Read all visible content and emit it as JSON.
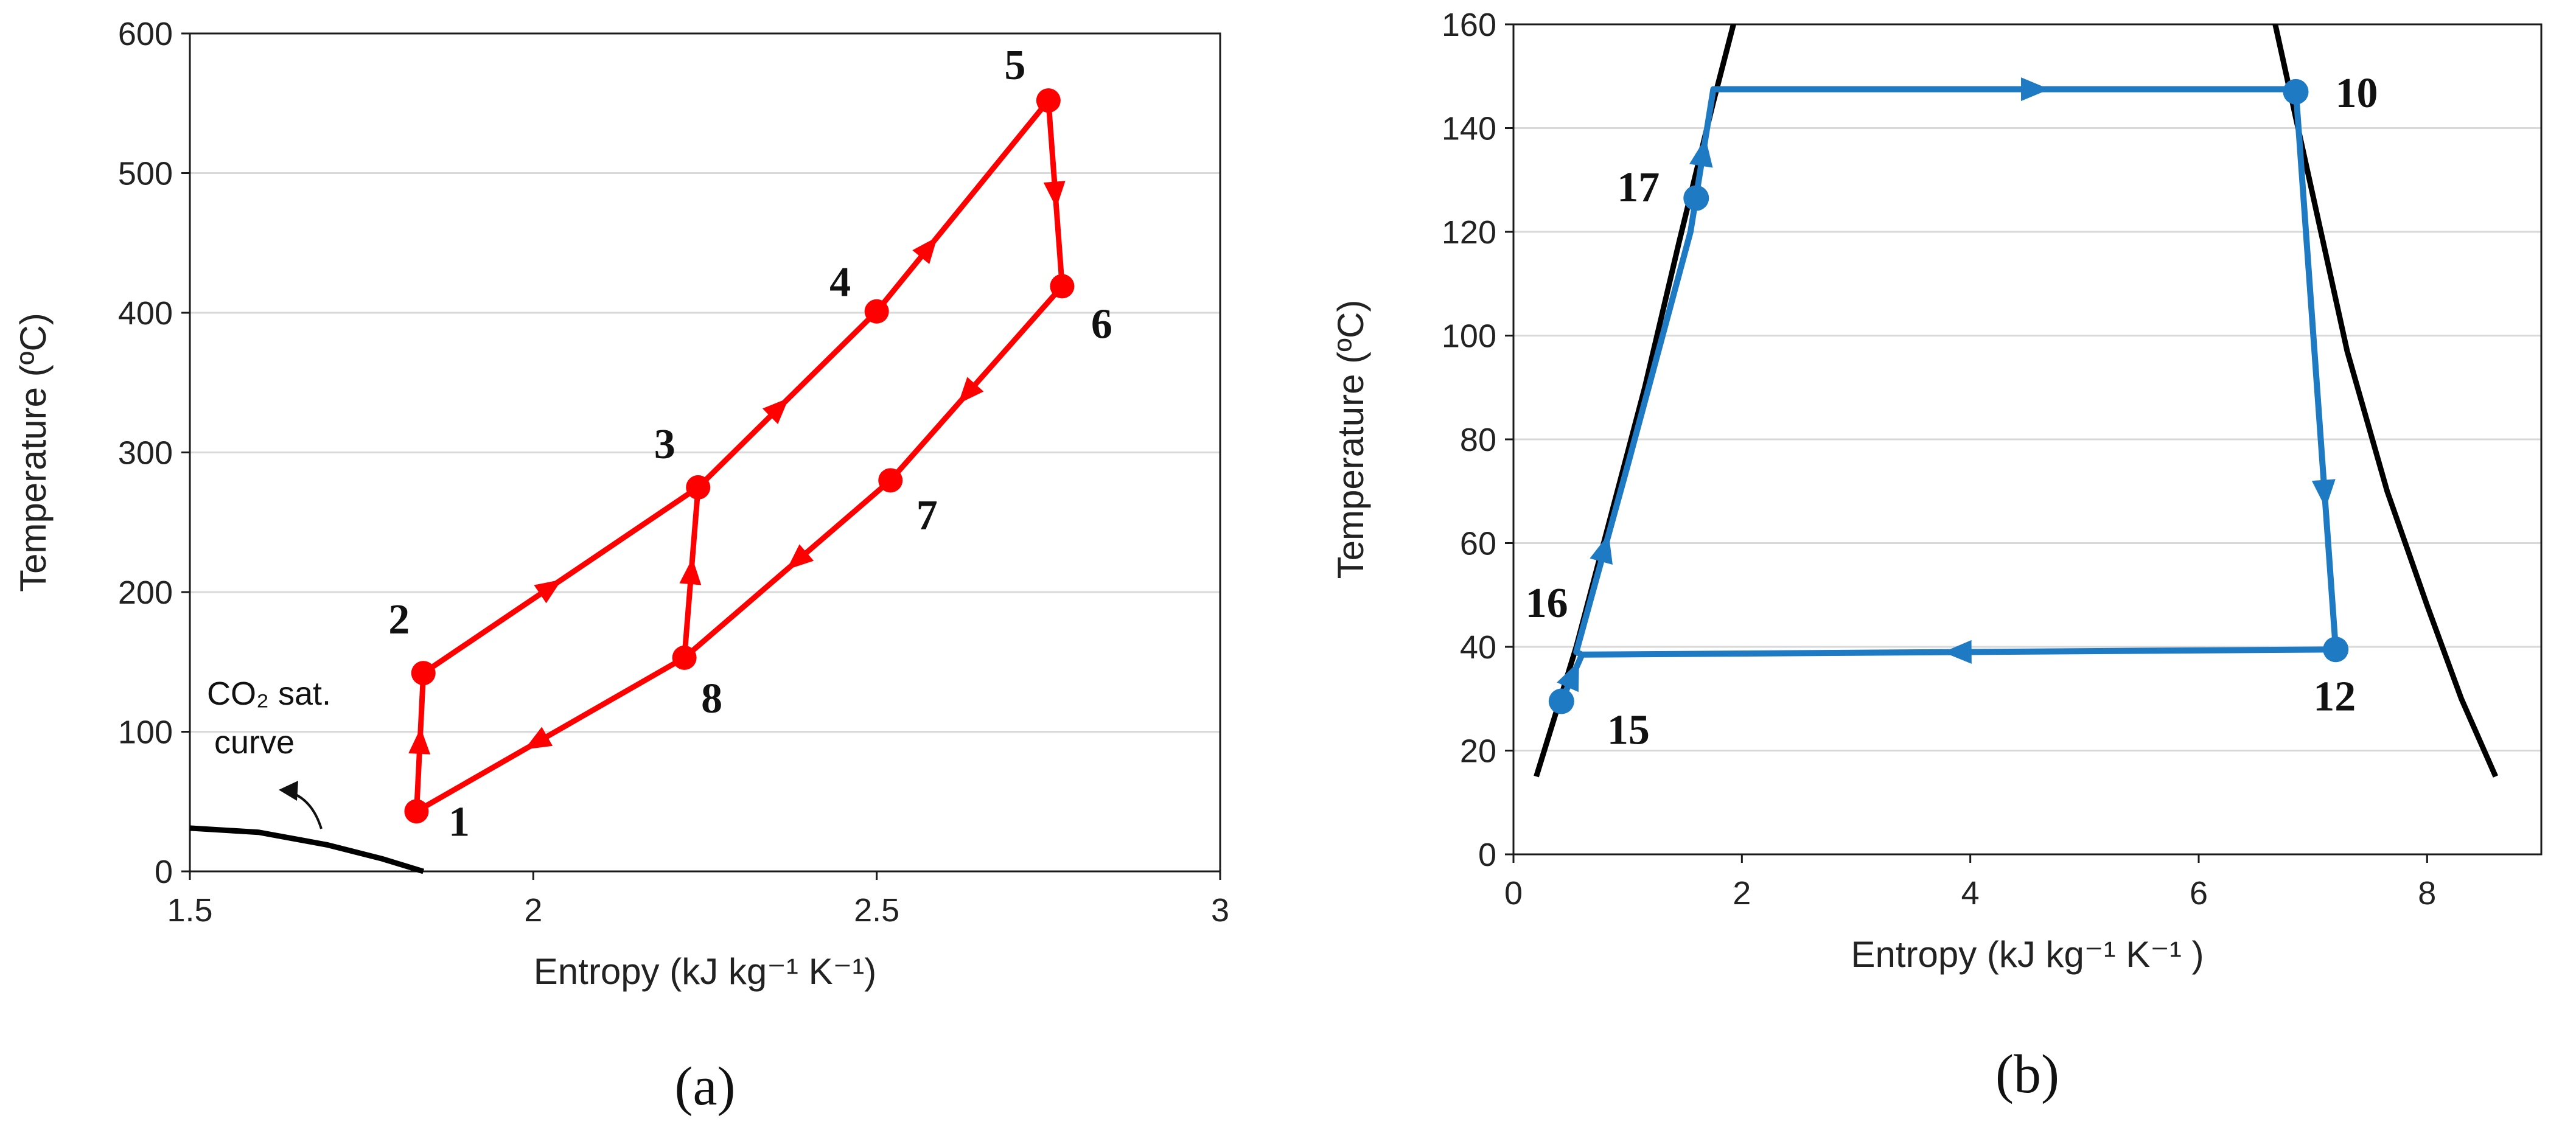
{
  "colors": {
    "cycle_a": "#ff0000",
    "cycle_b": "#1f7ac4",
    "saturation": "#000000",
    "grid": "#d9d9d9"
  },
  "chart_data": [
    {
      "type": "line",
      "panel_label": "(a)",
      "xlabel": "Entropy (kJ kg⁻¹ K⁻¹)",
      "ylabel": "Temperature (ºC)",
      "xlim": [
        1.5,
        3
      ],
      "ylim": [
        0,
        600
      ],
      "xticks": [
        1.5,
        2,
        2.5,
        3
      ],
      "xtick_labels": [
        "1.5",
        "2",
        "2.5",
        "3"
      ],
      "yticks": [
        0,
        100,
        200,
        300,
        400,
        500,
        600
      ],
      "ytick_labels": [
        "0",
        "100",
        "200",
        "300",
        "400",
        "500",
        "600"
      ],
      "grid": "horizontal",
      "points": [
        {
          "label": "1",
          "x": 1.83,
          "y": 43
        },
        {
          "label": "2",
          "x": 1.84,
          "y": 142
        },
        {
          "label": "3",
          "x": 2.24,
          "y": 275
        },
        {
          "label": "4",
          "x": 2.5,
          "y": 401
        },
        {
          "label": "5",
          "x": 2.75,
          "y": 552
        },
        {
          "label": "6",
          "x": 2.77,
          "y": 419
        },
        {
          "label": "7",
          "x": 2.52,
          "y": 280
        },
        {
          "label": "8",
          "x": 2.22,
          "y": 153
        }
      ],
      "cycle_path": [
        "1",
        "2",
        "3",
        "4",
        "5",
        "6",
        "7",
        "8",
        "3"
      ],
      "closing_segment": [
        "8",
        "1"
      ],
      "saturation_curve": {
        "annotation": [
          "CO₂ sat.",
          "curve"
        ],
        "x": [
          1.5,
          1.6,
          1.7,
          1.78,
          1.84
        ],
        "y": [
          31,
          28,
          19,
          9,
          0
        ]
      }
    },
    {
      "type": "line",
      "panel_label": "(b)",
      "xlabel": "Entropy  (kJ kg⁻¹ K⁻¹ )",
      "ylabel": "Temperature (ºC)",
      "xlim": [
        0,
        9
      ],
      "ylim": [
        0,
        160
      ],
      "xticks": [
        0,
        2,
        4,
        6,
        8
      ],
      "xtick_labels": [
        "0",
        "2",
        "4",
        "6",
        "8"
      ],
      "yticks": [
        0,
        20,
        40,
        60,
        80,
        100,
        120,
        140,
        160
      ],
      "ytick_labels": [
        "0",
        "20",
        "40",
        "60",
        "80",
        "100",
        "120",
        "140",
        "160"
      ],
      "grid": "horizontal",
      "points": [
        {
          "label": "10",
          "x": 6.85,
          "y": 147
        },
        {
          "label": "12",
          "x": 7.2,
          "y": 39.5
        },
        {
          "label": "15",
          "x": 0.42,
          "y": 29.5
        },
        {
          "label": "16",
          "x": 0.6,
          "y": 38.5
        },
        {
          "label": "17",
          "x": 1.6,
          "y": 126.5
        }
      ],
      "cycle_path": [
        [
          0.42,
          29.5
        ],
        [
          0.6,
          38.5
        ],
        [
          0.55,
          39
        ],
        [
          1.0,
          75
        ],
        [
          1.55,
          120
        ],
        [
          1.75,
          147.5
        ],
        [
          6.85,
          147.5
        ],
        [
          7.2,
          39.5
        ],
        [
          0.6,
          38.5
        ]
      ],
      "saturation_dome": {
        "liquid": {
          "x": [
            0.2,
            0.55,
            0.85,
            1.15,
            1.45,
            1.75,
            1.95
          ],
          "y": [
            15,
            40,
            65,
            90,
            118,
            145,
            162
          ]
        },
        "vapor": {
          "x": [
            6.65,
            6.95,
            7.3,
            7.65,
            8.0,
            8.3,
            8.6
          ],
          "y": [
            162,
            132,
            97,
            70,
            48,
            30,
            15
          ]
        }
      }
    }
  ]
}
